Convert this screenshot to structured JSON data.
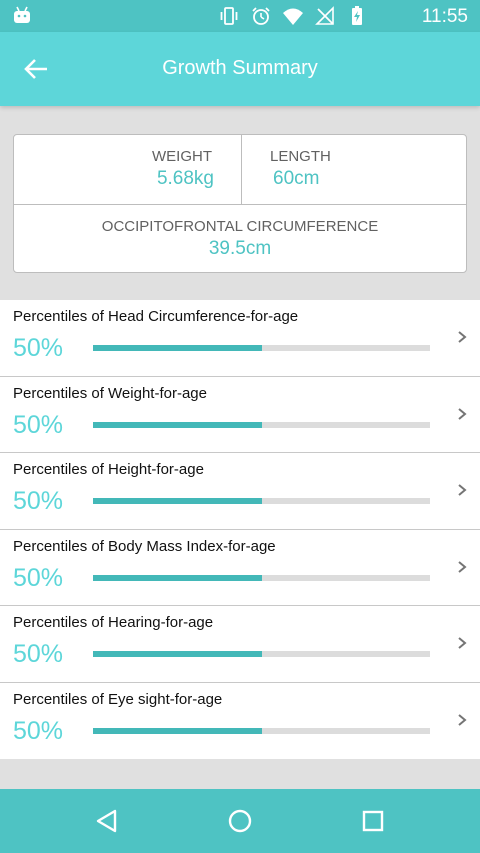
{
  "status_bar": {
    "time": "11:55",
    "icons": [
      "android-icon",
      "vibrate-icon",
      "alarm-icon",
      "wifi-icon",
      "no-signal-icon",
      "battery-charging-icon"
    ]
  },
  "app_bar": {
    "title": "Growth Summary",
    "back_icon": "arrow-left-icon"
  },
  "summary": {
    "weight": {
      "label": "WEIGHT",
      "value": "5.68kg"
    },
    "length": {
      "label": "LENGTH",
      "value": "60cm"
    },
    "ofc": {
      "label": "OCCIPITOFRONTAL CIRCUMFERENCE",
      "value": "39.5cm"
    }
  },
  "percentiles": [
    {
      "title": "Percentiles of Head Circumference-for-age",
      "value_text": "50%",
      "percent": 50
    },
    {
      "title": "Percentiles of Weight-for-age",
      "value_text": "50%",
      "percent": 50
    },
    {
      "title": "Percentiles of Height-for-age",
      "value_text": "50%",
      "percent": 50
    },
    {
      "title": "Percentiles of Body Mass Index-for-age",
      "value_text": "50%",
      "percent": 50
    },
    {
      "title": "Percentiles of Hearing-for-age",
      "value_text": "50%",
      "percent": 50
    },
    {
      "title": "Percentiles of Eye sight-for-age",
      "value_text": "50%",
      "percent": 50
    }
  ],
  "colors": {
    "primary": "#5dd6d9",
    "status_bar": "#4ec3c3",
    "bar_fill": "#43b8b8",
    "bar_track": "#dcdcdc"
  },
  "nav_bar": {
    "buttons": [
      "back-triangle-icon",
      "home-circle-icon",
      "recents-square-icon"
    ]
  }
}
